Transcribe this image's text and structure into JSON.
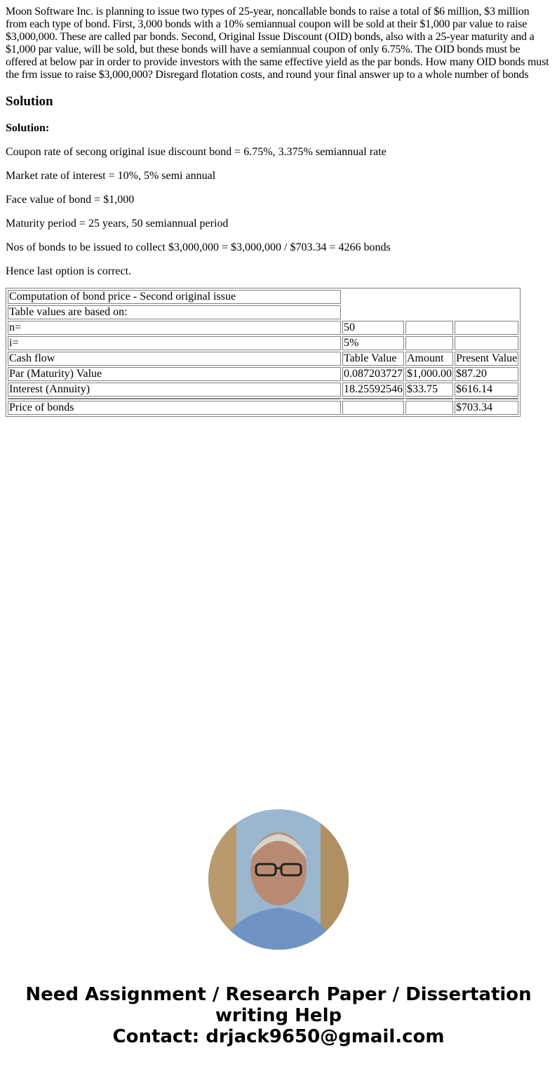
{
  "question": "Moon Software Inc. is planning to issue two types of 25-year, noncallable bonds to raise a total of $6 million, $3 million from each type of bond. First, 3,000 bonds with a 10% semiannual coupon will be sold at their $1,000 par value to raise $3,000,000. These are called par bonds. Second, Original Issue Discount (OID) bonds, also with a 25-year maturity and a $1,000 par value, will be sold, but these bonds will have a semiannual coupon of only 6.75%. The OID bonds must be offered at below par in order to provide investors with the same effective yield as the par bonds. How many OID bonds must the frm issue to raise $3,000,000? Disregard flotation costs, and round your final answer up to a whole number of bonds",
  "solution_heading": "Solution",
  "solution_label": "Solution:",
  "lines": [
    "Coupon rate of secong original isue discount bond = 6.75%, 3.375% semiannual rate",
    "Market rate of interest = 10%, 5% semi annual",
    "Face value of bond = $1,000",
    "Maturity period = 25 years, 50 semiannual period",
    "Nos of bonds to be issued to collect $3,000,000 = $3,000,000 / $703.34 = 4266 bonds",
    "Hence last option is correct."
  ],
  "table": {
    "title": "Computation of bond price - Second original issue",
    "subtitle": "Table values are based on:",
    "n_label": "n=",
    "n_value": "50",
    "i_label": "i=",
    "i_value": "5%",
    "headers": [
      "Cash flow",
      "Table Value",
      "Amount",
      "Present Value"
    ],
    "rows": [
      [
        "Par (Maturity) Value",
        "0.087203727",
        "$1,000.00",
        "$87.20"
      ],
      [
        "Interest (Annuity)",
        "18.25592546",
        "$33.75",
        "$616.14"
      ]
    ],
    "total": [
      "Price of bonds",
      "",
      "",
      "$703.34"
    ]
  },
  "footer": {
    "line1": "Need Assignment / Research Paper / Dissertation writing Help",
    "line2": "Contact: drjack9650@gmail.com"
  }
}
